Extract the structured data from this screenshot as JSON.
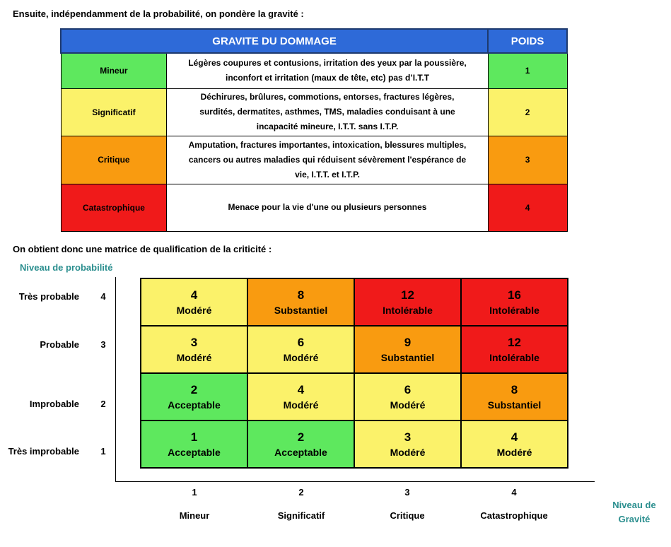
{
  "intro": "Ensuite, indépendamment de la probabilité, on pondère la gravité :",
  "table": {
    "header_gravity": "GRAVITE DU DOMMAGE",
    "header_weight": "POIDS",
    "rows": [
      {
        "label": "Mineur",
        "lines": [
          "Légères coupures et contusions, irritation des yeux par la poussière,",
          "inconfort et irritation (maux de tête, etc) pas d’I.T.T"
        ],
        "weight": "1",
        "color": "#5ee85e"
      },
      {
        "label": "Significatif",
        "lines": [
          "Déchirures, brûlures, commotions, entorses, fractures légères,",
          "surdités, dermatites, asthmes, TMS, maladies conduisant à une",
          "incapacité mineure, I.T.T. sans I.T.P."
        ],
        "weight": "2",
        "color": "#fbf26a"
      },
      {
        "label": "Critique",
        "lines": [
          "Amputation, fractures importantes, intoxication, blessures multiples,",
          "cancers ou autres maladies qui réduisent sévèrement l'espérance de",
          "vie, I.T.T. et I.T.P."
        ],
        "weight": "3",
        "color": "#f99b10"
      },
      {
        "label": "Catastrophique",
        "lines": [
          "Menace pour la vie d'une ou plusieurs personnes"
        ],
        "weight": "4",
        "color": "#f01a1a"
      }
    ]
  },
  "matrix": {
    "title": "On obtient donc une matrice de qualification de la criticité :",
    "y_axis_title": "Niveau de probabilité",
    "x_axis_title_lines": [
      "Niveau de",
      "Gravité"
    ],
    "rows": [
      {
        "label": "Très probable",
        "num": "4"
      },
      {
        "label": "Probable",
        "num": "3"
      },
      {
        "label": "Improbable",
        "num": "2"
      },
      {
        "label": "Très improbable",
        "num": "1"
      }
    ],
    "columns": [
      {
        "num": "1",
        "label": "Mineur"
      },
      {
        "num": "2",
        "label": "Significatif"
      },
      {
        "num": "3",
        "label": "Critique"
      },
      {
        "num": "4",
        "label": "Catastrophique"
      }
    ],
    "cells": [
      [
        {
          "value": "4",
          "level": "Modéré",
          "color": "#fbf26a",
          "text_color": "#000000"
        },
        {
          "value": "8",
          "level": "Substantiel",
          "color": "#f99b10",
          "text_color": "#000000"
        },
        {
          "value": "12",
          "level": "Intolérable",
          "color": "#f01a1a",
          "text_color": "#000000"
        },
        {
          "value": "16",
          "level": "Intolérable",
          "color": "#f01a1a",
          "text_color": "#000000"
        }
      ],
      [
        {
          "value": "3",
          "level": "Modéré",
          "color": "#fbf26a",
          "text_color": "#000000"
        },
        {
          "value": "6",
          "level": "Modéré",
          "color": "#fbf26a",
          "text_color": "#000000"
        },
        {
          "value": "9",
          "level": "Substantiel",
          "color": "#f99b10",
          "text_color": "#000000"
        },
        {
          "value": "12",
          "level": "Intolérable",
          "color": "#f01a1a",
          "text_color": "#000000"
        }
      ],
      [
        {
          "value": "2",
          "level": "Acceptable",
          "color": "#5ee85e",
          "text_color": "#000000"
        },
        {
          "value": "4",
          "level": "Modéré",
          "color": "#fbf26a",
          "text_color": "#000000"
        },
        {
          "value": "6",
          "level": "Modéré",
          "color": "#fbf26a",
          "text_color": "#000000"
        },
        {
          "value": "8",
          "level": "Substantiel",
          "color": "#f99b10",
          "text_color": "#000000"
        }
      ],
      [
        {
          "value": "1",
          "level": "Acceptable",
          "color": "#5ee85e",
          "text_color": "#000000"
        },
        {
          "value": "2",
          "level": "Acceptable",
          "color": "#5ee85e",
          "text_color": "#000000"
        },
        {
          "value": "3",
          "level": "Modéré",
          "color": "#fbf26a",
          "text_color": "#000000"
        },
        {
          "value": "4",
          "level": "Modéré",
          "color": "#fbf26a",
          "text_color": "#000000"
        }
      ]
    ]
  }
}
